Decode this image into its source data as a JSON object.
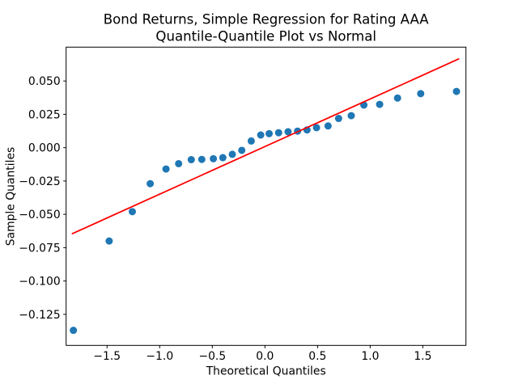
{
  "figure": {
    "title_line1": "Bond Returns, Simple Regression for Rating AAA",
    "title_line2": "Quantile-Quantile Plot vs Normal",
    "xlabel": "Theoretical Quantiles",
    "ylabel": "Sample Quantiles",
    "background_color": "#ffffff",
    "frame_color": "#000000"
  },
  "chart_data": {
    "type": "scatter",
    "title": "Bond Returns, Simple Regression for Rating AAA\nQuantile-Quantile Plot vs Normal",
    "xlabel": "Theoretical Quantiles",
    "ylabel": "Sample Quantiles",
    "grid": false,
    "legend": false,
    "xlim": [
      -1.889,
      1.91
    ],
    "ylim": [
      -0.1483,
      0.0754
    ],
    "x_ticks": [
      -1.5,
      -1.0,
      -0.5,
      0.0,
      0.5,
      1.0,
      1.5
    ],
    "x_tick_labels": [
      "−1.5",
      "−1.0",
      "−0.5",
      "0.0",
      "0.5",
      "1.0",
      "1.5"
    ],
    "y_ticks": [
      0.05,
      0.025,
      0.0,
      -0.025,
      -0.05,
      -0.075,
      -0.1,
      -0.125
    ],
    "y_tick_labels": [
      "0.050",
      "0.025",
      "0.000",
      "−0.025",
      "−0.050",
      "−0.075",
      "−0.100",
      "−0.125"
    ],
    "series": [
      {
        "name": "sample-vs-theoretical-quantiles",
        "type": "scatter",
        "color": "#1f77b4",
        "x": [
          -1.82,
          -1.48,
          -1.26,
          -1.09,
          -0.94,
          -0.82,
          -0.7,
          -0.6,
          -0.49,
          -0.4,
          -0.31,
          -0.22,
          -0.13,
          -0.04,
          0.04,
          0.13,
          0.22,
          0.31,
          0.4,
          0.49,
          0.6,
          0.7,
          0.82,
          0.94,
          1.09,
          1.26,
          1.48,
          1.82
        ],
        "y": [
          -0.137,
          -0.07,
          -0.048,
          -0.027,
          -0.016,
          -0.012,
          -0.009,
          -0.0088,
          -0.0083,
          -0.0075,
          -0.005,
          -0.002,
          0.005,
          0.0095,
          0.0105,
          0.0112,
          0.0119,
          0.0124,
          0.0133,
          0.015,
          0.0163,
          0.0219,
          0.024,
          0.032,
          0.0325,
          0.0372,
          0.0405,
          0.0422
        ]
      },
      {
        "name": "reference-line",
        "type": "line",
        "color": "#ff0000",
        "x": [
          -1.83,
          1.84
        ],
        "y": [
          -0.0645,
          0.0665
        ]
      }
    ]
  }
}
